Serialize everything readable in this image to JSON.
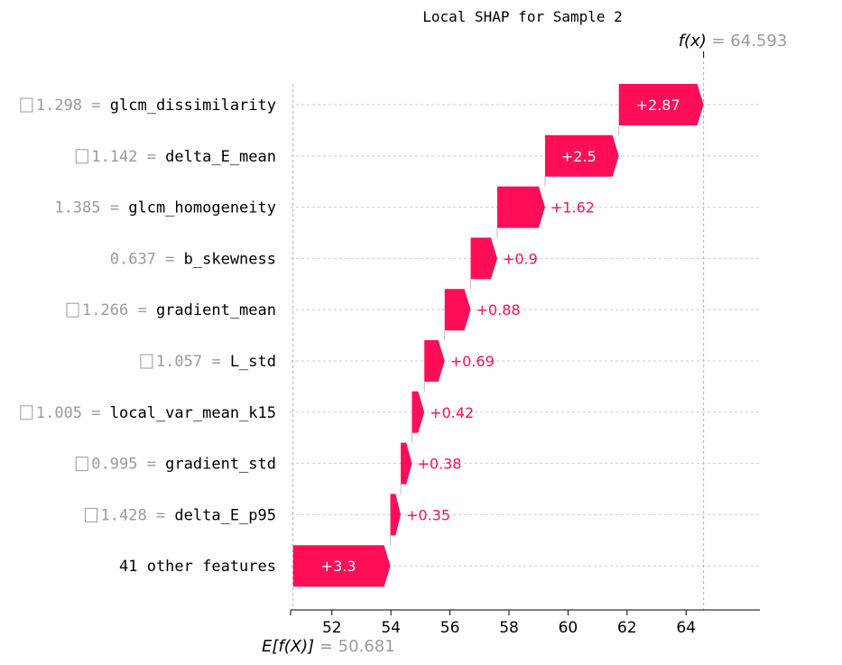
{
  "chart_data": {
    "type": "bar",
    "title": "Local SHAP for Sample 2",
    "fx_label": "f(x)",
    "fx_value": "64.593",
    "efx_label": "E[f(X)]",
    "efx_value": "50.681",
    "base_value": 50.681,
    "final_value": 64.593,
    "xlim": [
      50.6,
      66.5
    ],
    "xticks": [
      52,
      54,
      56,
      58,
      60,
      62,
      64
    ],
    "color_positive": "#ff0d57",
    "features": [
      {
        "name": "glcm_dissimilarity",
        "value": "1.298",
        "sign_box": true,
        "shap": 2.87,
        "label": "+2.87"
      },
      {
        "name": "delta_E_mean",
        "value": "1.142",
        "sign_box": true,
        "shap": 2.5,
        "label": "+2.5"
      },
      {
        "name": "glcm_homogeneity",
        "value": "1.385",
        "sign_box": false,
        "shap": 1.62,
        "label": "+1.62"
      },
      {
        "name": "b_skewness",
        "value": "0.637",
        "sign_box": false,
        "shap": 0.9,
        "label": "+0.9"
      },
      {
        "name": "gradient_mean",
        "value": "1.266",
        "sign_box": true,
        "shap": 0.88,
        "label": "+0.88"
      },
      {
        "name": "L_std",
        "value": "1.057",
        "sign_box": true,
        "shap": 0.69,
        "label": "+0.69"
      },
      {
        "name": "local_var_mean_k15",
        "value": "1.005",
        "sign_box": true,
        "shap": 0.42,
        "label": "+0.42"
      },
      {
        "name": "gradient_std",
        "value": "0.995",
        "sign_box": true,
        "shap": 0.38,
        "label": "+0.38"
      },
      {
        "name": "delta_E_p95",
        "value": "1.428",
        "sign_box": true,
        "shap": 0.35,
        "label": "+0.35"
      },
      {
        "name": "41 other features",
        "value": "",
        "sign_box": false,
        "shap": 3.3,
        "label": "+3.3"
      }
    ]
  }
}
